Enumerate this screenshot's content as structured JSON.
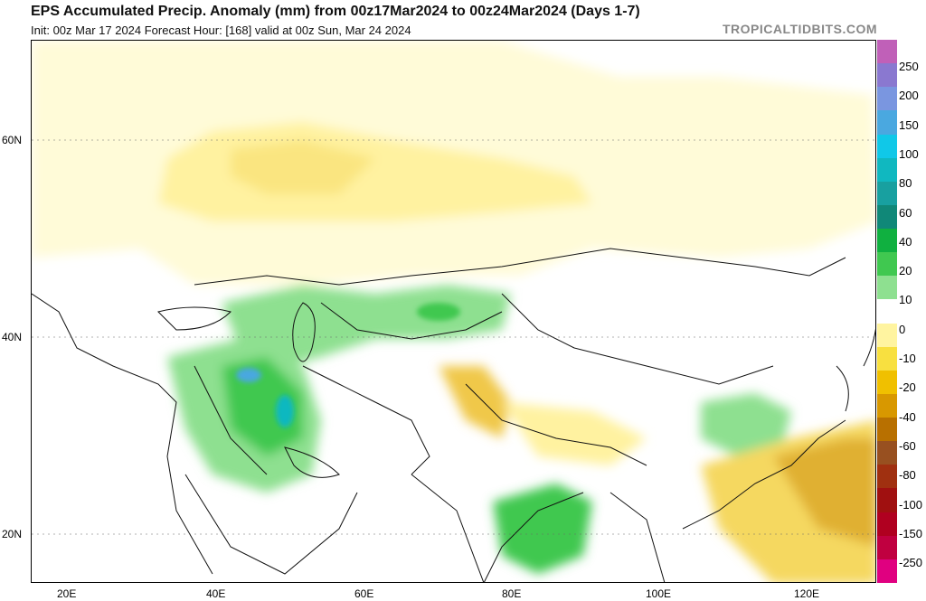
{
  "header": {
    "title": "EPS Accumulated Precip. Anomaly (mm) from 00z17Mar2024 to 00z24Mar2024 (Days 1-7)",
    "subtitle": "Init: 00z Mar 17 2024   Forecast Hour: [168]   valid at 00z Sun, Mar 24 2024",
    "brand": "TROPICALTIDBITS.COM"
  },
  "axes": {
    "lat_labels": [
      "60N",
      "40N",
      "20N"
    ],
    "lon_labels": [
      "20E",
      "40E",
      "60E",
      "80E",
      "100E",
      "120E"
    ]
  },
  "colorbar": {
    "labels": [
      "250",
      "200",
      "150",
      "100",
      "80",
      "60",
      "40",
      "20",
      "10",
      "0",
      "-10",
      "-20",
      "-40",
      "-60",
      "-80",
      "-100",
      "-150",
      "-250"
    ],
    "colors": [
      "#c060b8",
      "#8a78d0",
      "#7a96e0",
      "#4aa8e0",
      "#10c8e8",
      "#10b8c0",
      "#18a0a0",
      "#108878",
      "#10b040",
      "#40c850",
      "#8ee090",
      "#ffffff",
      "#fff4a0",
      "#f8e040",
      "#f0c000",
      "#d89800",
      "#b87000",
      "#985020",
      "#a03010",
      "#a01010",
      "#b00020",
      "#c00040",
      "#e00080"
    ]
  }
}
